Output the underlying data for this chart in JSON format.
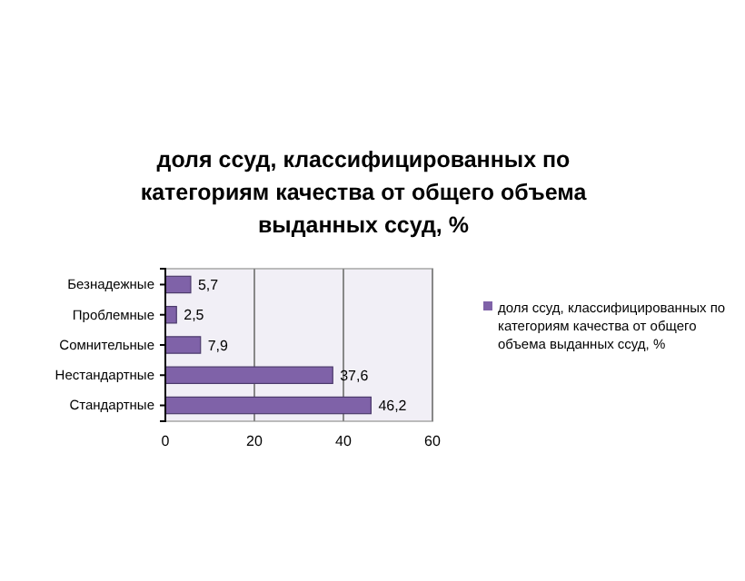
{
  "chart_data": {
    "type": "bar",
    "orientation": "horizontal",
    "title": "доля ссуд, классифицированных по категориям качества от общего объема выданных ссуд, %",
    "categories": [
      "Безнадежные",
      "Проблемные",
      "Сомнительные",
      "Нестандартные",
      "Стандартные"
    ],
    "series": [
      {
        "name": "доля ссуд, классифицированных по категориям качества от общего объема выданных ссуд, %",
        "color": "#7f62a8",
        "values": [
          5.7,
          2.5,
          7.9,
          37.6,
          46.2
        ],
        "value_labels": [
          "5,7",
          "2,5",
          "7,9",
          "37,6",
          "46,2"
        ]
      }
    ],
    "xlim": [
      0,
      60
    ],
    "xticks": [
      0,
      20,
      40,
      60
    ],
    "grid": "x",
    "legend": "right"
  }
}
